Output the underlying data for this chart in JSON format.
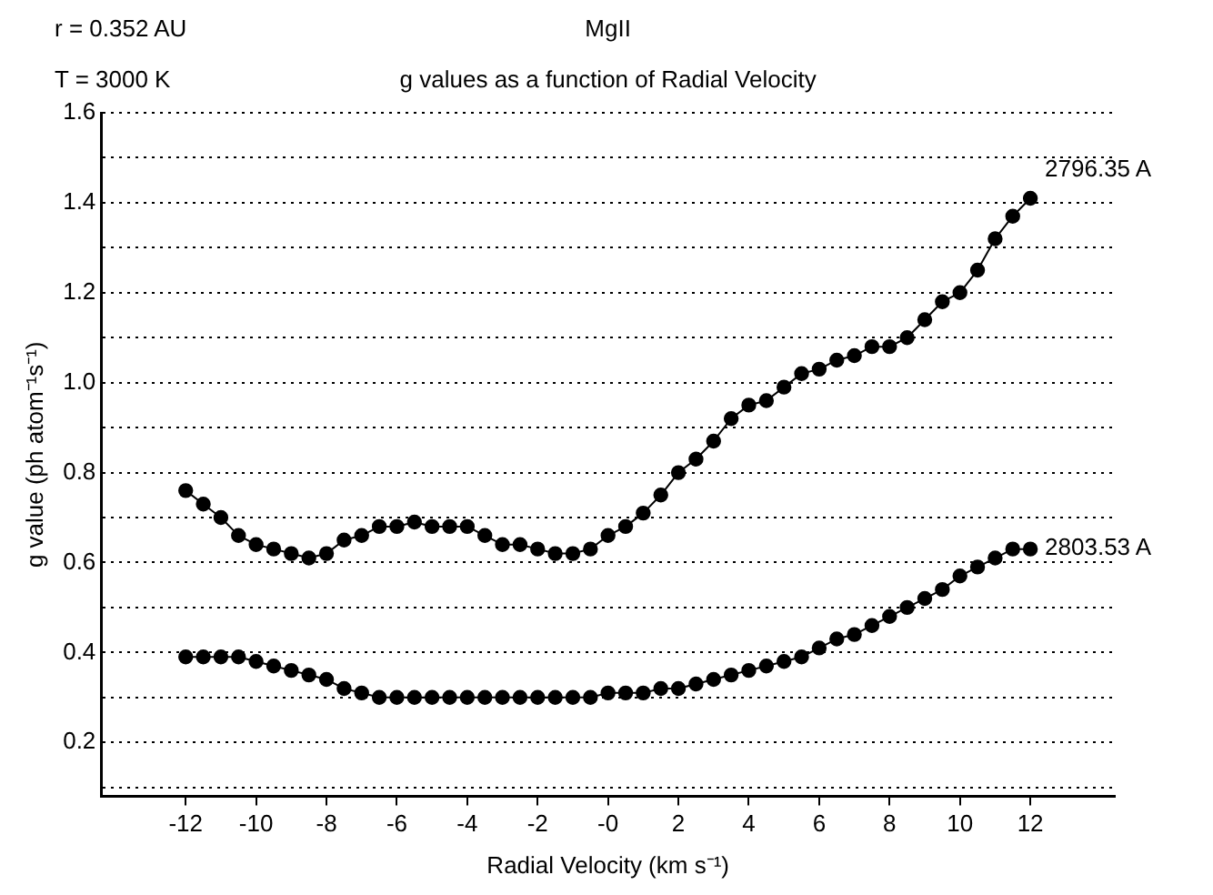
{
  "chart_data": {
    "type": "line",
    "title": "MgII",
    "subtitle": "g values as a function of Radial Velocity",
    "xlabel": "Radial Velocity (km s⁻¹)",
    "ylabel": "g value (ph atom⁻¹s⁻¹)",
    "annotations": [
      "r = 0.352 AU",
      "T = 3000 K"
    ],
    "x": [
      -12,
      -11.5,
      -11,
      -10.5,
      -10,
      -9.5,
      -9,
      -8.5,
      -8,
      -7.5,
      -7,
      -6.5,
      -6,
      -5.5,
      -5,
      -4.5,
      -4,
      -3.5,
      -3,
      -2.5,
      -2,
      -1.5,
      -1,
      -0.5,
      0,
      0.5,
      1,
      1.5,
      2,
      2.5,
      3,
      3.5,
      4,
      4.5,
      5,
      5.5,
      6,
      6.5,
      7,
      7.5,
      8,
      8.5,
      9,
      9.5,
      10,
      10.5,
      11,
      11.5,
      12
    ],
    "series": [
      {
        "name": "2796.35 A",
        "color": "#000000",
        "values": [
          0.76,
          0.73,
          0.7,
          0.66,
          0.64,
          0.63,
          0.62,
          0.61,
          0.62,
          0.65,
          0.66,
          0.68,
          0.68,
          0.69,
          0.68,
          0.68,
          0.68,
          0.66,
          0.64,
          0.64,
          0.63,
          0.62,
          0.62,
          0.63,
          0.66,
          0.68,
          0.71,
          0.75,
          0.8,
          0.83,
          0.87,
          0.92,
          0.95,
          0.96,
          0.99,
          1.02,
          1.03,
          1.05,
          1.06,
          1.08,
          1.08,
          1.1,
          1.14,
          1.18,
          1.2,
          1.25,
          1.32,
          1.37,
          1.41
        ]
      },
      {
        "name": "2803.53 A",
        "color": "#000000",
        "values": [
          0.39,
          0.39,
          0.39,
          0.39,
          0.38,
          0.37,
          0.36,
          0.35,
          0.34,
          0.32,
          0.31,
          0.3,
          0.3,
          0.3,
          0.3,
          0.3,
          0.3,
          0.3,
          0.3,
          0.3,
          0.3,
          0.3,
          0.3,
          0.3,
          0.31,
          0.31,
          0.31,
          0.32,
          0.32,
          0.33,
          0.34,
          0.35,
          0.36,
          0.37,
          0.38,
          0.39,
          0.41,
          0.43,
          0.44,
          0.46,
          0.48,
          0.5,
          0.52,
          0.54,
          0.57,
          0.59,
          0.61,
          0.63,
          0.63
        ]
      }
    ],
    "xlim": [
      -14.4,
      14.4
    ],
    "xticks": [
      -12,
      -10,
      -8,
      -6,
      -4,
      -2,
      {
        "value": 0,
        "label": "-0"
      },
      2,
      4,
      6,
      8,
      10,
      12
    ],
    "ylim": [
      0.08,
      1.6
    ],
    "yticks": [
      {
        "value": 0.1,
        "label": null
      },
      0.2,
      {
        "value": 0.3,
        "label": null
      },
      0.4,
      {
        "value": 0.5,
        "label": null
      },
      0.6,
      {
        "value": 0.7,
        "label": null
      },
      0.8,
      {
        "value": 0.9,
        "label": null
      },
      {
        "value": 1.0,
        "label": "1.0"
      },
      {
        "value": 1.1,
        "label": null
      },
      1.2,
      {
        "value": 1.3,
        "label": null
      },
      1.4,
      {
        "value": 1.5,
        "label": null
      },
      1.6
    ],
    "grid": "y",
    "legend": false,
    "marker": "circle",
    "line_style": "solid"
  }
}
